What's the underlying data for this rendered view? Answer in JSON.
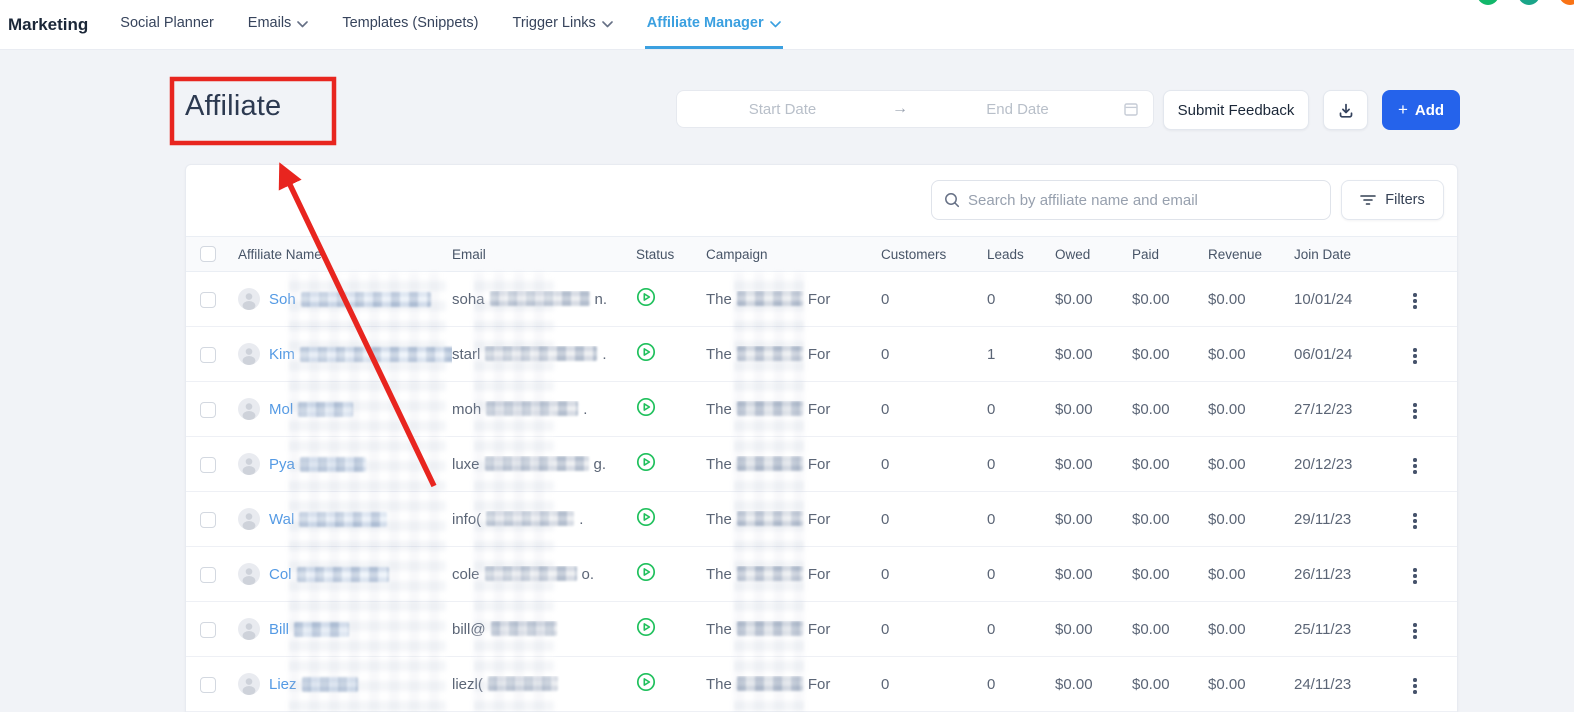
{
  "nav": {
    "title": "Marketing",
    "tabs": [
      {
        "label": "Social Planner"
      },
      {
        "label": "Emails"
      },
      {
        "label": "Templates (Snippets)"
      },
      {
        "label": "Trigger Links"
      },
      {
        "label": "Affiliate Manager"
      }
    ],
    "status_dots": [
      {
        "name": "green-dot",
        "color": "#12b76a"
      },
      {
        "name": "teal-dot",
        "color": "#1aa589"
      },
      {
        "name": "orange-dot",
        "color": "#f97316"
      }
    ]
  },
  "page": {
    "title": "Affiliate",
    "date_range": {
      "start_placeholder": "Start Date",
      "end_placeholder": "End Date",
      "arrow": "→"
    },
    "submit_feedback_label": "Submit Feedback",
    "add_button": {
      "plus": "+",
      "label": "Add"
    }
  },
  "toolbar": {
    "search_placeholder": "Search by affiliate name and email",
    "filters_label": "Filters"
  },
  "table": {
    "columns": [
      "Affiliate Name",
      "Email",
      "Status",
      "Campaign",
      "Customers",
      "Leads",
      "Owed",
      "Paid",
      "Revenue",
      "Join Date"
    ],
    "rows": [
      {
        "name_prefix": "Soh",
        "name_blur": 130,
        "email_prefix": "soha",
        "email_blur": 100,
        "email_suffix": "n.",
        "campaign_prefix": "The",
        "campaign_suffix": "For",
        "customers": "0",
        "leads": "0",
        "owed": "$0.00",
        "paid": "$0.00",
        "revenue": "$0.00",
        "join_date": "10/01/24"
      },
      {
        "name_prefix": "Kim",
        "name_blur": 190,
        "email_prefix": "starl",
        "email_blur": 112,
        "email_suffix": ".",
        "campaign_prefix": "The",
        "campaign_suffix": "For",
        "customers": "0",
        "leads": "1",
        "owed": "$0.00",
        "paid": "$0.00",
        "revenue": "$0.00",
        "join_date": "06/01/24"
      },
      {
        "name_prefix": "Mol",
        "name_blur": 55,
        "email_prefix": "moh",
        "email_blur": 92,
        "email_suffix": ".",
        "campaign_prefix": "The",
        "campaign_suffix": "For",
        "customers": "0",
        "leads": "0",
        "owed": "$0.00",
        "paid": "$0.00",
        "revenue": "$0.00",
        "join_date": "27/12/23"
      },
      {
        "name_prefix": "Pya",
        "name_blur": 66,
        "email_prefix": "luxe",
        "email_blur": 104,
        "email_suffix": "g.",
        "campaign_prefix": "The",
        "campaign_suffix": "For",
        "customers": "0",
        "leads": "0",
        "owed": "$0.00",
        "paid": "$0.00",
        "revenue": "$0.00",
        "join_date": "20/12/23"
      },
      {
        "name_prefix": "Wal",
        "name_blur": 88,
        "email_prefix": "info(",
        "email_blur": 88,
        "email_suffix": ".",
        "campaign_prefix": "The",
        "campaign_suffix": "For",
        "customers": "0",
        "leads": "0",
        "owed": "$0.00",
        "paid": "$0.00",
        "revenue": "$0.00",
        "join_date": "29/11/23"
      },
      {
        "name_prefix": "Col",
        "name_blur": 92,
        "email_prefix": "cole",
        "email_blur": 92,
        "email_suffix": "o.",
        "campaign_prefix": "The",
        "campaign_suffix": "For",
        "customers": "0",
        "leads": "0",
        "owed": "$0.00",
        "paid": "$0.00",
        "revenue": "$0.00",
        "join_date": "26/11/23"
      },
      {
        "name_prefix": "Bill",
        "name_blur": 55,
        "email_prefix": "bill@",
        "email_blur": 66,
        "email_suffix": "",
        "campaign_prefix": "The",
        "campaign_suffix": "For",
        "customers": "0",
        "leads": "0",
        "owed": "$0.00",
        "paid": "$0.00",
        "revenue": "$0.00",
        "join_date": "25/11/23"
      },
      {
        "name_prefix": "Liez",
        "name_blur": 56,
        "email_prefix": "liezl(",
        "email_blur": 70,
        "email_suffix": "",
        "campaign_prefix": "The",
        "campaign_suffix": "For",
        "customers": "0",
        "leads": "0",
        "owed": "$0.00",
        "paid": "$0.00",
        "revenue": "$0.00",
        "join_date": "24/11/23"
      }
    ]
  },
  "colors": {
    "accent_blue": "#2563eb",
    "active_tab_blue": "#3ba0e0",
    "link_blue": "#549ae4",
    "status_green": "#1fc05c",
    "annotation_red": "#e8251f"
  }
}
